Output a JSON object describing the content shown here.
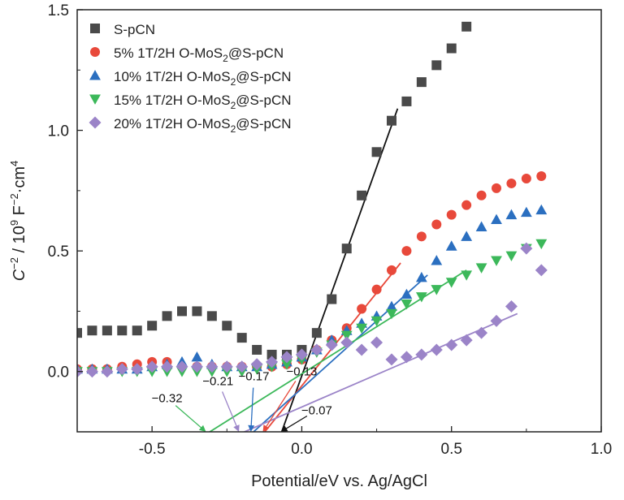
{
  "chart_data": {
    "type": "scatter",
    "title": "",
    "xlabel": "Potential/eV vs. Ag/AgCl",
    "ylabel_parts": {
      "c": "C",
      "sup1": "−2",
      "mid": " / 10",
      "sup2": "9",
      "mid2": " F",
      "sup3": "−2",
      "end": "·cm",
      "sup4": "4"
    },
    "xlim": [
      -0.75,
      1.0
    ],
    "ylim": [
      -0.25,
      1.5
    ],
    "xticks": [
      -0.5,
      0.0,
      0.5,
      1.0
    ],
    "xtick_labels": [
      "-0.5",
      "0.0",
      "0.5",
      "1.0"
    ],
    "yticks": [
      0.0,
      0.5,
      1.0,
      1.5
    ],
    "ytick_labels": [
      "0.0",
      "0.5",
      "1.0",
      "1.5"
    ],
    "grid": false,
    "legend_position": "top-left",
    "series": [
      {
        "name": "S-pCN",
        "prefix": "S-pCN",
        "sub": "",
        "suffix": "",
        "marker": "square",
        "color": "#4a4a4a",
        "x": [
          -0.75,
          -0.7,
          -0.65,
          -0.6,
          -0.55,
          -0.5,
          -0.45,
          -0.4,
          -0.35,
          -0.3,
          -0.25,
          -0.2,
          -0.15,
          -0.1,
          -0.05,
          0.0,
          0.05,
          0.1,
          0.15,
          0.2,
          0.25,
          0.3,
          0.35,
          0.4,
          0.45,
          0.5,
          0.55
        ],
        "y": [
          0.16,
          0.17,
          0.17,
          0.17,
          0.17,
          0.19,
          0.23,
          0.25,
          0.25,
          0.23,
          0.19,
          0.14,
          0.09,
          0.07,
          0.07,
          0.09,
          0.16,
          0.3,
          0.51,
          0.73,
          0.91,
          1.04,
          1.12,
          1.2,
          1.27,
          1.34,
          1.43
        ]
      },
      {
        "name": "5% 1T/2H O-MoS2@S-pCN",
        "prefix": "5% 1T/2H O-MoS",
        "sub": "2",
        "suffix": "@S-pCN",
        "marker": "circle",
        "color": "#e8493b",
        "x": [
          -0.75,
          -0.7,
          -0.65,
          -0.6,
          -0.55,
          -0.5,
          -0.45,
          -0.4,
          -0.35,
          -0.3,
          -0.25,
          -0.2,
          -0.15,
          -0.1,
          -0.05,
          0.0,
          0.05,
          0.1,
          0.15,
          0.2,
          0.25,
          0.3,
          0.35,
          0.4,
          0.45,
          0.5,
          0.55,
          0.6,
          0.65,
          0.7,
          0.75,
          0.8
        ],
        "y": [
          0.01,
          0.01,
          0.01,
          0.02,
          0.03,
          0.04,
          0.04,
          0.02,
          0.02,
          0.02,
          0.02,
          0.02,
          0.02,
          0.02,
          0.03,
          0.05,
          0.09,
          0.13,
          0.18,
          0.26,
          0.34,
          0.42,
          0.5,
          0.56,
          0.61,
          0.65,
          0.69,
          0.73,
          0.76,
          0.78,
          0.8,
          0.81
        ]
      },
      {
        "name": "10% 1T/2H O-MoS2@S-pCN",
        "prefix": "10% 1T/2H O-MoS",
        "sub": "2",
        "suffix": "@S-pCN",
        "marker": "triangle-up",
        "color": "#2b6fc0",
        "x": [
          -0.75,
          -0.7,
          -0.65,
          -0.6,
          -0.55,
          -0.5,
          -0.45,
          -0.4,
          -0.35,
          -0.3,
          -0.25,
          -0.2,
          -0.15,
          -0.1,
          -0.05,
          0.0,
          0.05,
          0.1,
          0.15,
          0.2,
          0.25,
          0.3,
          0.35,
          0.4,
          0.45,
          0.5,
          0.55,
          0.6,
          0.65,
          0.7,
          0.75,
          0.8
        ],
        "y": [
          0.01,
          0.01,
          0.01,
          0.01,
          0.01,
          0.02,
          0.03,
          0.04,
          0.06,
          0.03,
          0.02,
          0.02,
          0.02,
          0.03,
          0.04,
          0.06,
          0.09,
          0.13,
          0.17,
          0.2,
          0.23,
          0.27,
          0.32,
          0.39,
          0.46,
          0.52,
          0.56,
          0.6,
          0.63,
          0.65,
          0.66,
          0.67
        ]
      },
      {
        "name": "15% 1T/2H O-MoS2@S-pCN",
        "prefix": "15% 1T/2H O-MoS",
        "sub": "2",
        "suffix": "@S-pCN",
        "marker": "triangle-down",
        "color": "#3cb85a",
        "x": [
          -0.75,
          -0.7,
          -0.65,
          -0.6,
          -0.55,
          -0.5,
          -0.45,
          -0.4,
          -0.35,
          -0.3,
          -0.25,
          -0.2,
          -0.15,
          -0.1,
          -0.05,
          0.0,
          0.05,
          0.1,
          0.15,
          0.2,
          0.25,
          0.3,
          0.35,
          0.4,
          0.45,
          0.5,
          0.55,
          0.6,
          0.65,
          0.7,
          0.75,
          0.8
        ],
        "y": [
          0.0,
          0.0,
          0.0,
          0.0,
          0.0,
          0.0,
          0.0,
          0.0,
          0.0,
          0.0,
          0.0,
          0.0,
          0.01,
          0.02,
          0.03,
          0.05,
          0.08,
          0.11,
          0.15,
          0.18,
          0.21,
          0.24,
          0.28,
          0.31,
          0.34,
          0.37,
          0.4,
          0.43,
          0.46,
          0.48,
          0.51,
          0.53
        ]
      },
      {
        "name": "20% 1T/2H O-MoS2@S-pCN",
        "prefix": "20% 1T/2H O-MoS",
        "sub": "2",
        "suffix": "@S-pCN",
        "marker": "diamond",
        "color": "#9b84c8",
        "x": [
          -0.75,
          -0.7,
          -0.65,
          -0.6,
          -0.55,
          -0.5,
          -0.45,
          -0.4,
          -0.35,
          -0.3,
          -0.25,
          -0.2,
          -0.15,
          -0.1,
          -0.05,
          0.0,
          0.05,
          0.1,
          0.15,
          0.2,
          0.25,
          0.3,
          0.35,
          0.4,
          0.45,
          0.5,
          0.55,
          0.6,
          0.65,
          0.7,
          0.75,
          0.8
        ],
        "y": [
          0.0,
          0.0,
          0.0,
          0.01,
          0.01,
          0.02,
          0.02,
          0.02,
          0.02,
          0.02,
          0.02,
          0.02,
          0.03,
          0.04,
          0.06,
          0.07,
          0.09,
          0.11,
          0.12,
          0.09,
          0.12,
          0.05,
          0.06,
          0.07,
          0.09,
          0.11,
          0.13,
          0.16,
          0.21,
          0.27,
          0.51,
          0.42
        ]
      }
    ],
    "fit_lines": [
      {
        "series": "S-pCN",
        "color": "#111111",
        "x": [
          -0.07,
          0.32
        ],
        "y": [
          -0.26,
          1.09
        ]
      },
      {
        "series": "5% 1T/2H O-MoS2@S-pCN",
        "color": "#e8493b",
        "x": [
          -0.13,
          0.33
        ],
        "y": [
          -0.26,
          0.45
        ]
      },
      {
        "series": "10% 1T/2H O-MoS2@S-pCN",
        "color": "#2b6fc0",
        "x": [
          -0.17,
          0.42
        ],
        "y": [
          -0.26,
          0.4
        ]
      },
      {
        "series": "15% 1T/2H O-MoS2@S-pCN",
        "color": "#3cb85a",
        "x": [
          -0.32,
          0.55
        ],
        "y": [
          -0.26,
          0.42
        ]
      },
      {
        "series": "20% 1T/2H O-MoS2@S-pCN",
        "color": "#9b84c8",
        "x": [
          -0.21,
          0.72
        ],
        "y": [
          -0.26,
          0.24
        ]
      }
    ],
    "intercept_annotations": [
      {
        "text": "−0.07",
        "x": -0.07,
        "color": "#111111",
        "label_x": 0.05,
        "label_y": -0.16
      },
      {
        "text": "−0.13",
        "x": -0.13,
        "color": "#e8493b",
        "label_x": 0.0,
        "label_y": 0.0
      },
      {
        "text": "−0.17",
        "x": -0.17,
        "color": "#2b6fc0",
        "label_x": -0.16,
        "label_y": -0.02
      },
      {
        "text": "−0.21",
        "x": -0.21,
        "color": "#9b84c8",
        "label_x": -0.28,
        "label_y": -0.04
      },
      {
        "text": "−0.32",
        "x": -0.32,
        "color": "#3cb85a",
        "label_x": -0.45,
        "label_y": -0.11
      }
    ]
  }
}
